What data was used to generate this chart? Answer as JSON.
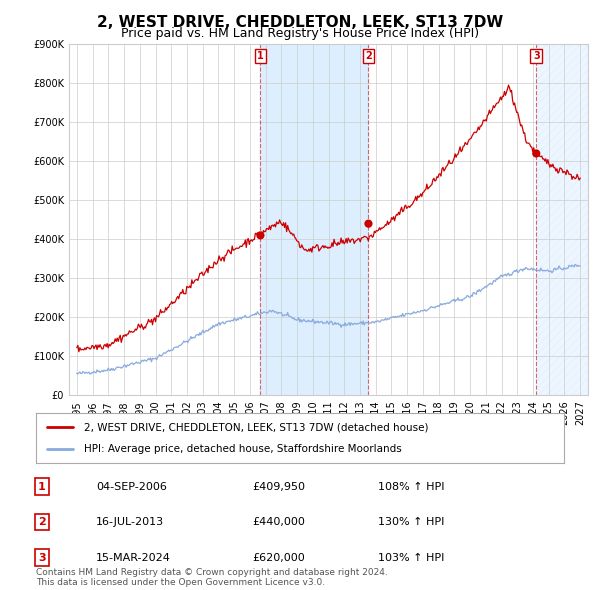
{
  "title": "2, WEST DRIVE, CHEDDLETON, LEEK, ST13 7DW",
  "subtitle": "Price paid vs. HM Land Registry's House Price Index (HPI)",
  "property_label": "2, WEST DRIVE, CHEDDLETON, LEEK, ST13 7DW (detached house)",
  "hpi_label": "HPI: Average price, detached house, Staffordshire Moorlands",
  "transactions": [
    {
      "num": 1,
      "date": "04-SEP-2006",
      "price": 409950,
      "pct": "108%",
      "dir": "↑",
      "year": 2006.67
    },
    {
      "num": 2,
      "date": "16-JUL-2013",
      "price": 440000,
      "pct": "130%",
      "dir": "↑",
      "year": 2013.54
    },
    {
      "num": 3,
      "date": "15-MAR-2024",
      "price": 620000,
      "pct": "103%",
      "dir": "↑",
      "year": 2024.21
    }
  ],
  "copyright": "Contains HM Land Registry data © Crown copyright and database right 2024.\nThis data is licensed under the Open Government Licence v3.0.",
  "property_color": "#cc0000",
  "hpi_color": "#88aadd",
  "highlight_color": "#ddeeff",
  "ylim": [
    0,
    900000
  ],
  "yticks": [
    0,
    100000,
    200000,
    300000,
    400000,
    500000,
    600000,
    700000,
    800000,
    900000
  ],
  "background_color": "#ffffff",
  "grid_color": "#cccccc",
  "title_fontsize": 11,
  "subtitle_fontsize": 9
}
